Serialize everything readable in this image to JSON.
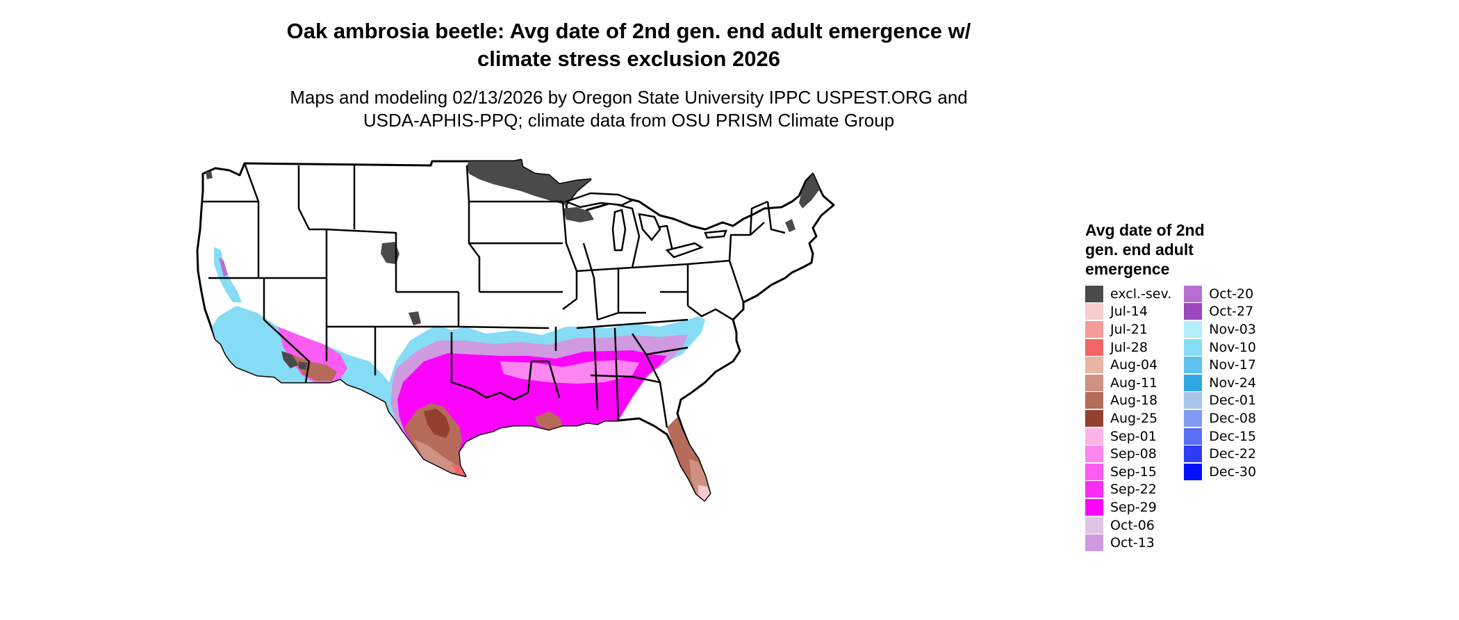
{
  "title": {
    "line1": "Oak ambrosia beetle: Avg date of 2nd gen. end adult emergence w/",
    "line2": "climate stress exclusion 2026"
  },
  "subtitle": {
    "line1": "Maps and modeling 02/13/2026 by Oregon State University IPPC USPEST.ORG and",
    "line2": "USDA-APHIS-PPQ; climate data from OSU PRISM Climate Group"
  },
  "legend": {
    "title_lines": [
      "Avg date of 2nd",
      "gen. end adult",
      "emergence"
    ],
    "columns": [
      [
        {
          "label": "excl.-sev.",
          "color": "#4a4a4a"
        },
        {
          "label": "Jul-14",
          "color": "#f6cccc"
        },
        {
          "label": "Jul-21",
          "color": "#f49b9b"
        },
        {
          "label": "Jul-28",
          "color": "#f26565"
        },
        {
          "label": "Aug-04",
          "color": "#e8b4a6"
        },
        {
          "label": "Aug-11",
          "color": "#cf9182"
        },
        {
          "label": "Aug-18",
          "color": "#b56a5a"
        },
        {
          "label": "Aug-25",
          "color": "#93402f"
        },
        {
          "label": "Sep-01",
          "color": "#fcb4e6"
        },
        {
          "label": "Sep-08",
          "color": "#fc86ef"
        },
        {
          "label": "Sep-15",
          "color": "#fc5cf2"
        },
        {
          "label": "Sep-22",
          "color": "#fb2ef5"
        },
        {
          "label": "Sep-29",
          "color": "#fc04fc"
        },
        {
          "label": "Oct-06",
          "color": "#e0c4e8"
        },
        {
          "label": "Oct-13",
          "color": "#cf9ae0"
        }
      ],
      [
        {
          "label": "Oct-20",
          "color": "#b66fd0"
        },
        {
          "label": "Oct-27",
          "color": "#9b47bd"
        },
        {
          "label": "Nov-03",
          "color": "#b3eefc"
        },
        {
          "label": "Nov-10",
          "color": "#87dcf5"
        },
        {
          "label": "Nov-17",
          "color": "#5cc4ec"
        },
        {
          "label": "Nov-24",
          "color": "#2ea8e0"
        },
        {
          "label": "Dec-01",
          "color": "#a6c4e8"
        },
        {
          "label": "Dec-08",
          "color": "#7f9af0"
        },
        {
          "label": "Dec-15",
          "color": "#5870f4"
        },
        {
          "label": "Dec-22",
          "color": "#2c3cf8"
        },
        {
          "label": "Dec-30",
          "color": "#0010fc"
        }
      ]
    ]
  },
  "map": {
    "colors": {
      "excl": "#4a4a4a",
      "blue": "#87dcf5",
      "blue_dark": "#2ea8e0",
      "lavender": "#cf9ae0",
      "purple": "#b66fd0",
      "magenta": "#fc04fc",
      "magenta_light": "#fc5cf2",
      "pink_light": "#fc86ef",
      "brown_light": "#cf9182",
      "brown": "#b56a5a",
      "brown_dark": "#93402f",
      "salmon": "#f26565",
      "rose": "#f6cccc",
      "state_line": "#000000"
    }
  }
}
